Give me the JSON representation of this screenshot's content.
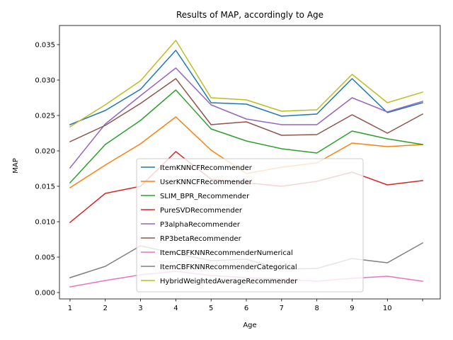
{
  "chart_data": {
    "type": "line",
    "title": "Results of MAP, accordingly to Age",
    "xlabel": "Age",
    "ylabel": "MAP",
    "x": [
      1,
      2,
      3,
      4,
      5,
      6,
      7,
      8,
      9,
      10,
      11
    ],
    "x_tick_labels": [
      "1",
      "2",
      "3",
      "4",
      "5",
      "6",
      "7",
      "8",
      "9",
      "10",
      ""
    ],
    "y_ticks": [
      "0.000",
      "0.005",
      "0.010",
      "0.015",
      "0.020",
      "0.025",
      "0.030",
      "0.035"
    ],
    "y_tick_values": [
      0.0,
      0.005,
      0.01,
      0.015,
      0.02,
      0.025,
      0.03,
      0.035
    ],
    "xlim": [
      0.7,
      11.5
    ],
    "ylim": [
      -0.0009,
      0.0377
    ],
    "grid": false,
    "legend_position": "lower center",
    "series": [
      {
        "name": "ItemKNNCFRecommender",
        "color": "#1f77b4",
        "values": [
          0.0237,
          0.0257,
          0.0287,
          0.0342,
          0.0268,
          0.0266,
          0.0249,
          0.0252,
          0.0302,
          0.0254,
          0.0268
        ]
      },
      {
        "name": "UserKNNCFRecommender",
        "color": "#ff7f0e",
        "values": [
          0.0148,
          0.018,
          0.021,
          0.0248,
          0.0201,
          0.0168,
          0.0177,
          0.0183,
          0.0211,
          0.0206,
          0.0209
        ]
      },
      {
        "name": "SLIM_BPR_Recommender",
        "color": "#2ca02c",
        "values": [
          0.0155,
          0.0209,
          0.0243,
          0.0286,
          0.0231,
          0.0214,
          0.0203,
          0.0197,
          0.0228,
          0.0217,
          0.0209
        ]
      },
      {
        "name": "PureSVDRecommender",
        "color": "#d62728",
        "values": [
          0.0099,
          0.014,
          0.015,
          0.0199,
          0.016,
          0.0155,
          0.015,
          0.0157,
          0.017,
          0.0152,
          0.0158
        ]
      },
      {
        "name": "P3alphaRecommender",
        "color": "#9467bd",
        "values": [
          0.0176,
          0.0238,
          0.0278,
          0.0317,
          0.0265,
          0.0245,
          0.0237,
          0.0237,
          0.0275,
          0.0255,
          0.027
        ]
      },
      {
        "name": "RP3betaRecommender",
        "color": "#8c564b",
        "values": [
          0.0213,
          0.0236,
          0.0267,
          0.0302,
          0.0237,
          0.0241,
          0.0222,
          0.0223,
          0.0251,
          0.0225,
          0.0252
        ]
      },
      {
        "name": "ItemCBFKNNRecommenderNumerical",
        "color": "#e377c2",
        "values": [
          0.0008,
          0.0017,
          0.0025,
          0.003,
          0.0024,
          0.0021,
          0.0019,
          0.0016,
          0.002,
          0.0023,
          0.0016
        ]
      },
      {
        "name": "ItemCBFKNNRecommenderCategorical",
        "color": "#7f7f7f",
        "values": [
          0.0021,
          0.0037,
          0.0066,
          0.0055,
          0.0045,
          0.0047,
          0.0033,
          0.0034,
          0.0048,
          0.0042,
          0.007
        ]
      },
      {
        "name": "HybridWeightedAverageRecommender",
        "color": "#bcbd22",
        "values": [
          0.0234,
          0.0265,
          0.0299,
          0.0356,
          0.0275,
          0.0272,
          0.0256,
          0.0258,
          0.0308,
          0.0268,
          0.0283
        ]
      }
    ]
  }
}
